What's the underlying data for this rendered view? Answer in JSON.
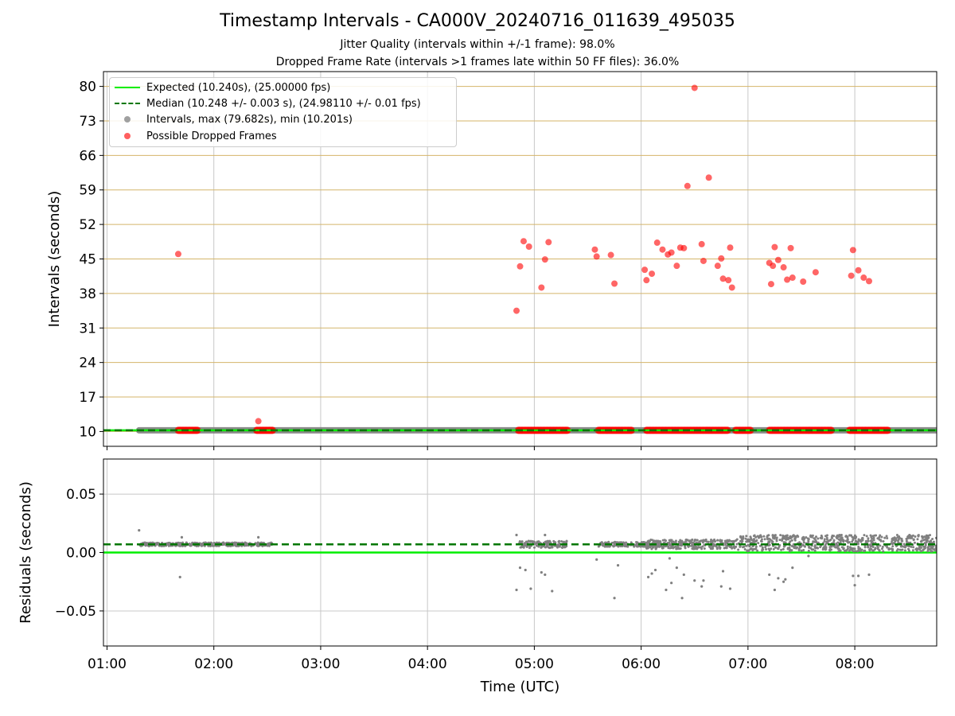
{
  "header": {
    "title": "Timestamp Intervals - CA000V_20240716_011639_495035",
    "subtitle1": "Jitter Quality (intervals within +/-1 frame): 98.0%",
    "subtitle2": "Dropped Frame Rate (intervals >1 frames late within 50 FF files): 36.0%"
  },
  "legend": {
    "expected": "Expected (10.240s), (25.00000 fps)",
    "median": "Median (10.248 +/- 0.003 s), (24.98110 +/- 0.01 fps)",
    "intervals": "Intervals, max (79.682s), min (10.201s)",
    "dropped": "Possible Dropped Frames"
  },
  "colors": {
    "expected": "#00ee00",
    "median": "#007700",
    "intervals": "#808080",
    "dropped": "#ff0000",
    "hgrid_top": "#d4b56a",
    "grid": "#c8c8c8"
  },
  "chart_data": [
    {
      "type": "scatter",
      "panel": "intervals",
      "ylabel": "Intervals (seconds)",
      "xlabel": "",
      "xlim": [
        "00:58",
        "08:46"
      ],
      "ylim": [
        7,
        83
      ],
      "yticks": [
        10,
        17,
        24,
        31,
        38,
        45,
        52,
        59,
        66,
        73,
        80
      ],
      "xticks": [
        "01:00",
        "02:00",
        "03:00",
        "04:00",
        "05:00",
        "06:00",
        "07:00",
        "08:00"
      ],
      "grid": true,
      "legend_position": "top-left",
      "expected": 10.24,
      "median": 10.248,
      "interval_points": {
        "value": 10.24,
        "spans": [
          [
            "01:18",
            "08:46"
          ]
        ]
      },
      "dropped_frame_clusters_at_baseline": [
        [
          "01:40",
          "01:51"
        ],
        [
          "02:24",
          "02:33"
        ],
        [
          "04:51",
          "05:19"
        ],
        [
          "05:36",
          "05:55"
        ],
        [
          "06:03",
          "06:49"
        ],
        [
          "06:53",
          "07:02"
        ],
        [
          "07:12",
          "07:47"
        ],
        [
          "07:57",
          "08:19"
        ]
      ],
      "dropped_frames": [
        {
          "x": "01:40",
          "y": 46.0
        },
        {
          "x": "02:25",
          "y": 12.1
        },
        {
          "x": "04:50",
          "y": 34.5
        },
        {
          "x": "04:52",
          "y": 43.5
        },
        {
          "x": "04:54",
          "y": 48.6
        },
        {
          "x": "04:57",
          "y": 47.5
        },
        {
          "x": "05:04",
          "y": 39.2
        },
        {
          "x": "05:06",
          "y": 44.9
        },
        {
          "x": "05:08",
          "y": 48.4
        },
        {
          "x": "05:34",
          "y": 46.9
        },
        {
          "x": "05:35",
          "y": 45.5
        },
        {
          "x": "05:43",
          "y": 45.8
        },
        {
          "x": "05:45",
          "y": 40.0
        },
        {
          "x": "06:02",
          "y": 42.8
        },
        {
          "x": "06:03",
          "y": 40.7
        },
        {
          "x": "06:06",
          "y": 42.0
        },
        {
          "x": "06:09",
          "y": 48.3
        },
        {
          "x": "06:12",
          "y": 46.9
        },
        {
          "x": "06:15",
          "y": 45.9
        },
        {
          "x": "06:17",
          "y": 46.3
        },
        {
          "x": "06:20",
          "y": 43.6
        },
        {
          "x": "06:22",
          "y": 47.3
        },
        {
          "x": "06:24",
          "y": 47.2
        },
        {
          "x": "06:26",
          "y": 59.8
        },
        {
          "x": "06:30",
          "y": 79.7
        },
        {
          "x": "06:34",
          "y": 48.0
        },
        {
          "x": "06:35",
          "y": 44.6
        },
        {
          "x": "06:38",
          "y": 61.5
        },
        {
          "x": "06:43",
          "y": 43.6
        },
        {
          "x": "06:45",
          "y": 45.1
        },
        {
          "x": "06:46",
          "y": 41.0
        },
        {
          "x": "06:49",
          "y": 40.7
        },
        {
          "x": "06:50",
          "y": 47.3
        },
        {
          "x": "06:51",
          "y": 39.2
        },
        {
          "x": "07:12",
          "y": 44.2
        },
        {
          "x": "07:13",
          "y": 39.9
        },
        {
          "x": "07:14",
          "y": 43.6
        },
        {
          "x": "07:15",
          "y": 47.4
        },
        {
          "x": "07:17",
          "y": 44.8
        },
        {
          "x": "07:20",
          "y": 43.3
        },
        {
          "x": "07:22",
          "y": 40.8
        },
        {
          "x": "07:24",
          "y": 47.2
        },
        {
          "x": "07:25",
          "y": 41.2
        },
        {
          "x": "07:31",
          "y": 40.4
        },
        {
          "x": "07:38",
          "y": 42.3
        },
        {
          "x": "07:58",
          "y": 41.6
        },
        {
          "x": "07:59",
          "y": 46.8
        },
        {
          "x": "08:02",
          "y": 42.7
        },
        {
          "x": "08:05",
          "y": 41.2
        },
        {
          "x": "08:08",
          "y": 40.5
        }
      ]
    },
    {
      "type": "scatter",
      "panel": "residuals",
      "ylabel": "Residuals (seconds)",
      "xlabel": "Time (UTC)",
      "xlim": [
        "00:58",
        "08:46"
      ],
      "ylim": [
        -0.08,
        0.08
      ],
      "yticks": [
        0.05,
        0.0,
        -0.05
      ],
      "ytick_labels": [
        "0.05",
        "0.00",
        "−0.05"
      ],
      "xticks": [
        "01:00",
        "02:00",
        "03:00",
        "04:00",
        "05:00",
        "06:00",
        "07:00",
        "08:00"
      ],
      "grid": true,
      "expected": 0.0,
      "median": 0.007,
      "residual_bands": [
        {
          "from": "01:18",
          "to": "02:33",
          "y": 0.007,
          "spread": 0.0015
        },
        {
          "from": "04:51",
          "to": "05:19",
          "y": 0.007,
          "spread": 0.003
        },
        {
          "from": "05:36",
          "to": "06:10",
          "y": 0.007,
          "spread": 0.002
        },
        {
          "from": "06:03",
          "to": "06:53",
          "y": 0.007,
          "spread": 0.004
        },
        {
          "from": "06:53",
          "to": "08:46",
          "y": 0.008,
          "spread": 0.007
        }
      ],
      "outliers": [
        {
          "x": "01:18",
          "y": 0.019
        },
        {
          "x": "01:41",
          "y": -0.021
        },
        {
          "x": "01:42",
          "y": 0.013
        },
        {
          "x": "02:25",
          "y": 0.013
        },
        {
          "x": "04:50",
          "y": -0.032
        },
        {
          "x": "04:50",
          "y": 0.015
        },
        {
          "x": "04:52",
          "y": -0.013
        },
        {
          "x": "04:55",
          "y": -0.015
        },
        {
          "x": "04:58",
          "y": -0.031
        },
        {
          "x": "05:04",
          "y": -0.017
        },
        {
          "x": "05:06",
          "y": -0.019
        },
        {
          "x": "05:06",
          "y": 0.015
        },
        {
          "x": "05:10",
          "y": -0.033
        },
        {
          "x": "05:35",
          "y": -0.006
        },
        {
          "x": "05:45",
          "y": -0.039
        },
        {
          "x": "05:47",
          "y": -0.011
        },
        {
          "x": "06:04",
          "y": -0.021
        },
        {
          "x": "06:06",
          "y": -0.018
        },
        {
          "x": "06:08",
          "y": -0.015
        },
        {
          "x": "06:14",
          "y": -0.032
        },
        {
          "x": "06:16",
          "y": -0.005
        },
        {
          "x": "06:17",
          "y": -0.026
        },
        {
          "x": "06:20",
          "y": -0.013
        },
        {
          "x": "06:23",
          "y": -0.039
        },
        {
          "x": "06:24",
          "y": -0.019
        },
        {
          "x": "06:30",
          "y": -0.024
        },
        {
          "x": "06:34",
          "y": -0.029
        },
        {
          "x": "06:35",
          "y": -0.024
        },
        {
          "x": "06:45",
          "y": -0.029
        },
        {
          "x": "06:46",
          "y": -0.016
        },
        {
          "x": "06:50",
          "y": -0.031
        },
        {
          "x": "07:12",
          "y": -0.019
        },
        {
          "x": "07:15",
          "y": -0.032
        },
        {
          "x": "07:17",
          "y": -0.022
        },
        {
          "x": "07:20",
          "y": -0.025
        },
        {
          "x": "07:21",
          "y": -0.023
        },
        {
          "x": "07:25",
          "y": -0.013
        },
        {
          "x": "07:34",
          "y": -0.003
        },
        {
          "x": "07:59",
          "y": -0.02
        },
        {
          "x": "08:00",
          "y": -0.028
        },
        {
          "x": "08:02",
          "y": -0.02
        },
        {
          "x": "08:08",
          "y": -0.019
        }
      ]
    }
  ]
}
